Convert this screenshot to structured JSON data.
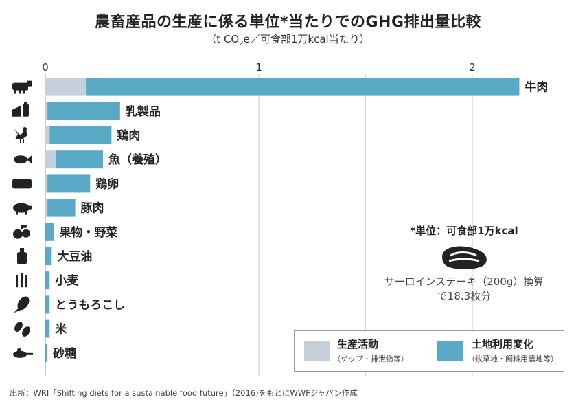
{
  "title": "農畜産品の生産に係る単位*当たりでのGHG排出量比較",
  "subtitle": {
    "before": "（t CO",
    "sub": "2",
    "after": "e／可食部1万kcal当たり）"
  },
  "chart_data": {
    "type": "bar",
    "orientation": "horizontal",
    "stacked": true,
    "xlim": [
      0,
      2.3
    ],
    "ticks": [
      "0",
      "1",
      "2"
    ],
    "tick_values": [
      0,
      1,
      2
    ],
    "grid": true,
    "categories": [
      "牛肉",
      "乳製品",
      "鶏肉",
      "魚（養殖）",
      "鶏卵",
      "豚肉",
      "果物・野菜",
      "大豆油",
      "小麦",
      "とうもろこし",
      "米",
      "砂糖"
    ],
    "icons": [
      "cow-icon",
      "cheese-milk-icon",
      "chicken-icon",
      "fish-icon",
      "egg-carton-icon",
      "pig-icon",
      "fruit-icon",
      "oil-bottle-icon",
      "wheat-icon",
      "corn-icon",
      "rice-icon",
      "sugar-spoon-icon"
    ],
    "series": [
      {
        "name": "生産活動",
        "color": "#c6d0da",
        "values": [
          0.19,
          0.01,
          0.02,
          0.05,
          0.01,
          0.01,
          0.0,
          0.0,
          0.0,
          0.0,
          0.0,
          0.0
        ]
      },
      {
        "name": "土地利用変化",
        "color": "#5aa9c6",
        "values": [
          2.03,
          0.34,
          0.29,
          0.22,
          0.2,
          0.13,
          0.04,
          0.03,
          0.02,
          0.02,
          0.02,
          0.01
        ]
      }
    ]
  },
  "note": {
    "title": "*単位：可食部1万kcal",
    "icon": "steak-icon",
    "line1": "サーロインステーキ（200g）換算",
    "line2": "で18.3枚分"
  },
  "legend": {
    "production": {
      "label": "生産活動",
      "sub": "（ゲップ・排泄物等）",
      "color": "#c6d0da"
    },
    "landuse": {
      "label": "土地利用変化",
      "sub": "（牧草地・飼料用農地等）",
      "color": "#5aa9c6"
    }
  },
  "source": "出所：WRI「Shifting diets for a sustainable food future」（2016)をもとにWWFジャパン作成"
}
